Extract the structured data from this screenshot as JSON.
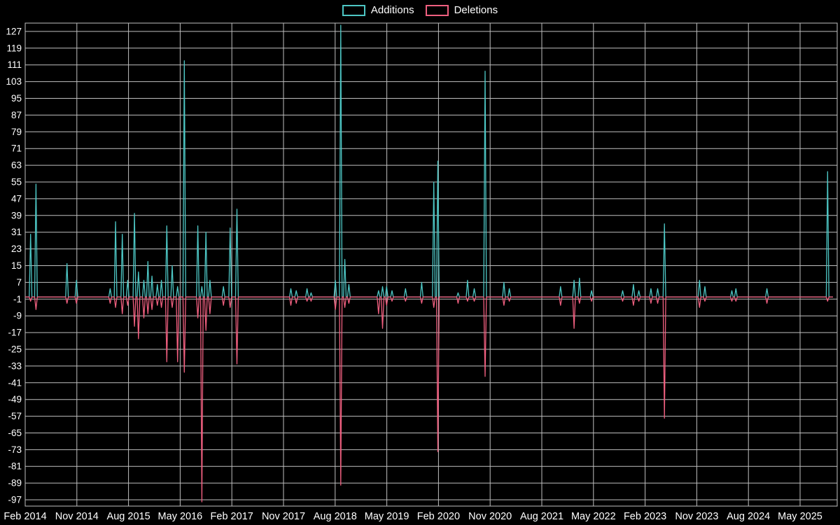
{
  "chart_data": {
    "type": "line",
    "title": "",
    "xlabel": "",
    "ylabel": "",
    "legend_position": "top-center",
    "baseline": 0,
    "y_range": [
      -100,
      131
    ],
    "y_ticks": [
      127,
      119,
      111,
      103,
      95,
      87,
      79,
      71,
      63,
      55,
      47,
      39,
      31,
      23,
      15,
      7,
      -1,
      -9,
      -17,
      -25,
      -33,
      -41,
      -49,
      -57,
      -65,
      -73,
      -81,
      -89,
      -97
    ],
    "x_tick_labels": [
      "Feb 2014",
      "Nov 2014",
      "Aug 2015",
      "May 2016",
      "Feb 2017",
      "Nov 2017",
      "Aug 2018",
      "May 2019",
      "Feb 2020",
      "Nov 2020",
      "Aug 2021",
      "May 2022",
      "Feb 2023",
      "Nov 2023",
      "Aug 2024",
      "May 2025"
    ],
    "colors": {
      "background": "#000000",
      "grid": "#bfbfbf",
      "text": "#ffffff"
    },
    "series": [
      {
        "name": "Additions",
        "color": "#4dc6c4"
      },
      {
        "name": "Deletions",
        "color": "#ef5f7f"
      }
    ],
    "spikes": [
      [
        0.0061,
        30,
        -2
      ],
      [
        0.0139,
        54,
        -6
      ],
      [
        0.0511,
        16,
        -3
      ],
      [
        0.0641,
        8,
        -3
      ],
      [
        0.1057,
        4,
        -3
      ],
      [
        0.1126,
        36,
        -5
      ],
      [
        0.1196,
        30,
        -8
      ],
      [
        0.1265,
        8,
        -4
      ],
      [
        0.1352,
        40,
        -14
      ],
      [
        0.1404,
        12,
        -20
      ],
      [
        0.1464,
        8,
        -10
      ],
      [
        0.1516,
        17,
        -8
      ],
      [
        0.1568,
        10,
        -6
      ],
      [
        0.1629,
        6,
        -4
      ],
      [
        0.1681,
        8,
        -5
      ],
      [
        0.175,
        34,
        -31
      ],
      [
        0.1828,
        15,
        -5
      ],
      [
        0.188,
        5,
        -31
      ],
      [
        0.1967,
        113,
        -36
      ],
      [
        0.214,
        34,
        -10
      ],
      [
        0.2184,
        5,
        -98
      ],
      [
        0.2236,
        31,
        -16
      ],
      [
        0.2288,
        8,
        -8
      ],
      [
        0.2461,
        5,
        -4
      ],
      [
        0.2539,
        33,
        -5
      ],
      [
        0.2617,
        42,
        -32
      ],
      [
        0.3284,
        4,
        -4
      ],
      [
        0.3362,
        3,
        -3
      ],
      [
        0.3483,
        4,
        -2
      ],
      [
        0.3544,
        2,
        -2
      ],
      [
        0.3847,
        8,
        -6
      ],
      [
        0.3908,
        130,
        -90
      ],
      [
        0.396,
        18,
        -5
      ],
      [
        0.4003,
        6,
        -3
      ],
      [
        0.4367,
        3,
        -8
      ],
      [
        0.4419,
        5,
        -15
      ],
      [
        0.448,
        5,
        -4
      ],
      [
        0.4541,
        3,
        -2
      ],
      [
        0.4714,
        4,
        -2
      ],
      [
        0.4905,
        7,
        -3
      ],
      [
        0.5061,
        55,
        -5
      ],
      [
        0.5113,
        65,
        -74
      ],
      [
        0.5364,
        2,
        -3
      ],
      [
        0.5477,
        8,
        -2
      ],
      [
        0.5564,
        4,
        -2
      ],
      [
        0.5685,
        108,
        -38
      ],
      [
        0.5928,
        7,
        -4
      ],
      [
        0.5997,
        4,
        -2
      ],
      [
        0.6621,
        5,
        -4
      ],
      [
        0.6794,
        8,
        -15
      ],
      [
        0.6863,
        9,
        -3
      ],
      [
        0.7011,
        3,
        -2
      ],
      [
        0.7401,
        3,
        -2
      ],
      [
        0.7531,
        6,
        -4
      ],
      [
        0.7591,
        3,
        -2
      ],
      [
        0.7747,
        4,
        -3
      ],
      [
        0.7834,
        4,
        -3
      ],
      [
        0.7921,
        35,
        -58
      ],
      [
        0.8354,
        8,
        -5
      ],
      [
        0.8415,
        5,
        -2
      ],
      [
        0.8744,
        3,
        -2
      ],
      [
        0.8805,
        4,
        -2
      ],
      [
        0.9177,
        4,
        -3
      ],
      [
        0.9939,
        60,
        -2
      ]
    ]
  }
}
